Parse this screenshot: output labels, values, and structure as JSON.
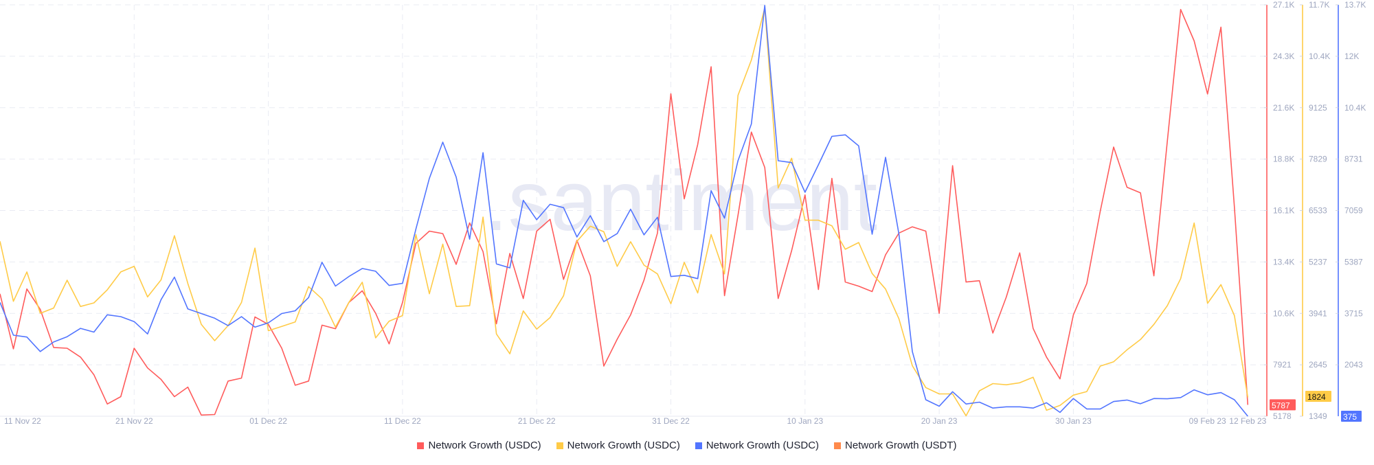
{
  "chart_data": {
    "type": "line",
    "title": "",
    "watermark": ".santiment",
    "x_ticks": [
      {
        "day": 0,
        "label": "11 Nov 22"
      },
      {
        "day": 10,
        "label": "21 Nov 22"
      },
      {
        "day": 20,
        "label": "01 Dec 22"
      },
      {
        "day": 30,
        "label": "11 Dec 22"
      },
      {
        "day": 40,
        "label": "21 Dec 22"
      },
      {
        "day": 50,
        "label": "31 Dec 22"
      },
      {
        "day": 60,
        "label": "10 Jan 23"
      },
      {
        "day": 70,
        "label": "20 Jan 23"
      },
      {
        "day": 80,
        "label": "30 Jan 23"
      },
      {
        "day": 90,
        "label": "09 Feb 23"
      },
      {
        "day": 93,
        "label": "12 Feb 23"
      }
    ],
    "x_range_days": [
      0,
      93
    ],
    "grid": true,
    "legend_position": "bottom-center",
    "axes": [
      {
        "series": 0,
        "color": "#ff5b5b",
        "ylim": [
          5178,
          27100
        ],
        "ticks": [
          "27.1K",
          "24.3K",
          "21.6K",
          "18.8K",
          "16.1K",
          "13.4K",
          "10.6K",
          "7921",
          "5178"
        ],
        "last_value": "5787"
      },
      {
        "series": 1,
        "color": "#ffcb47",
        "ylim": [
          1349,
          11700
        ],
        "ticks": [
          "11.7K",
          "10.4K",
          "9125",
          "7829",
          "6533",
          "5237",
          "3941",
          "2645",
          "1349"
        ],
        "last_value": "1824"
      },
      {
        "series": 2,
        "color": "#5275ff",
        "ylim": [
          375,
          13700
        ],
        "ticks": [
          "13.7K",
          "12K",
          "10.4K",
          "8731",
          "7059",
          "5387",
          "3715",
          "2043"
        ],
        "last_value": "375"
      }
    ],
    "series": [
      {
        "name": "Network Growth (USDC)",
        "color": "#ff5b5b",
        "values": [
          11700,
          8770,
          11960,
          10870,
          8840,
          8800,
          8330,
          7390,
          5830,
          6220,
          8800,
          7750,
          7140,
          6220,
          6730,
          5240,
          5270,
          7050,
          7210,
          10470,
          10070,
          8800,
          6830,
          7050,
          10030,
          9840,
          11240,
          11860,
          10660,
          9030,
          11240,
          14390,
          15040,
          14910,
          13270,
          15480,
          13950,
          10100,
          13850,
          11450,
          15040,
          15670,
          12470,
          14550,
          12660,
          7850,
          9280,
          10580,
          12430,
          14940,
          22360,
          16760,
          19660,
          23800,
          11600,
          15880,
          20320,
          18430,
          11450,
          14000,
          16970,
          11930,
          17850,
          12330,
          12110,
          11820,
          13780,
          14940,
          15270,
          15040,
          10660,
          18530,
          12330,
          12400,
          9610,
          11530,
          13880,
          9860,
          8330,
          7170,
          10580,
          12250,
          16100,
          19520,
          17380,
          17080,
          12660,
          19810,
          26850,
          25180,
          22350,
          25910,
          16320,
          5787
        ]
      },
      {
        "name": "Network Growth (USDC)",
        "color": "#ffcb47",
        "values": [
          5750,
          4240,
          4980,
          3940,
          4070,
          4770,
          4110,
          4200,
          4530,
          4980,
          5120,
          4350,
          4780,
          5890,
          4690,
          3660,
          3250,
          3630,
          4210,
          5580,
          3500,
          3610,
          3720,
          4610,
          4300,
          3590,
          4210,
          4720,
          3320,
          3740,
          3880,
          5920,
          4430,
          5680,
          4110,
          4130,
          6360,
          3420,
          2920,
          4000,
          3540,
          3830,
          4380,
          5750,
          6130,
          5990,
          5120,
          5740,
          5150,
          4930,
          4180,
          5220,
          4450,
          5920,
          4930,
          9420,
          10310,
          11620,
          7090,
          7840,
          6280,
          6280,
          6140,
          5550,
          5720,
          4940,
          4550,
          3800,
          2620,
          2070,
          1910,
          1910,
          1360,
          1990,
          2170,
          2140,
          2190,
          2330,
          1500,
          1620,
          1880,
          1970,
          2610,
          2720,
          3020,
          3280,
          3660,
          4130,
          4810,
          6210,
          4190,
          4660,
          3880,
          1824
        ]
      },
      {
        "name": "Network Growth (USDC)",
        "color": "#5275ff",
        "values": [
          4060,
          3000,
          2940,
          2470,
          2780,
          2950,
          3220,
          3100,
          3660,
          3600,
          3440,
          3040,
          4150,
          4880,
          3850,
          3700,
          3550,
          3310,
          3600,
          3260,
          3400,
          3700,
          3790,
          4220,
          5360,
          4590,
          4900,
          5160,
          5070,
          4610,
          4680,
          6440,
          8080,
          9250,
          8120,
          6110,
          8910,
          5310,
          5180,
          7370,
          6740,
          7240,
          7130,
          6180,
          6870,
          6030,
          6290,
          7080,
          6250,
          6820,
          4900,
          4940,
          4830,
          7680,
          6790,
          8650,
          9840,
          13680,
          8650,
          8590,
          7630,
          8520,
          9440,
          9490,
          9130,
          6270,
          8760,
          6270,
          2470,
          910,
          700,
          1170,
          770,
          830,
          640,
          680,
          680,
          640,
          810,
          500,
          950,
          610,
          610,
          850,
          900,
          780,
          950,
          940,
          980,
          1230,
          1070,
          1140,
          910,
          375
        ]
      },
      {
        "name": "Network Growth (USDT)",
        "color": "#ff8a4c",
        "values": []
      }
    ]
  }
}
